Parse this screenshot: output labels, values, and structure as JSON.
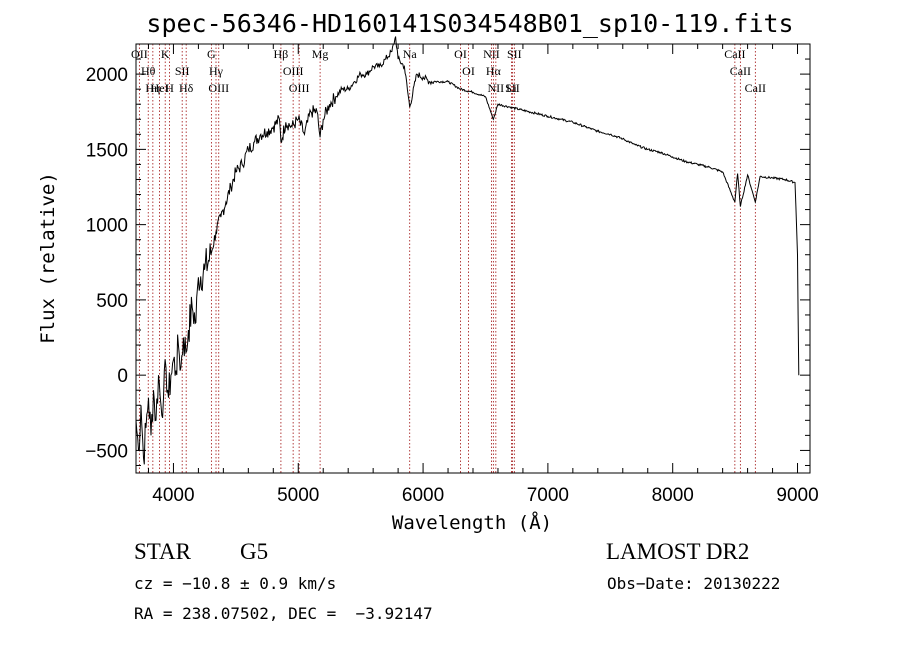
{
  "chart_data": {
    "type": "line",
    "title": "spec-56346-HD160141S034548B01_sp10-119.fits",
    "xlabel": "Wavelength (Å)",
    "ylabel": "Flux (relative)",
    "xlim": [
      3700,
      9100
    ],
    "ylim": [
      -650,
      2200
    ],
    "xticks": [
      4000,
      5000,
      6000,
      7000,
      8000,
      9000
    ],
    "yticks": [
      -500,
      0,
      500,
      1000,
      1500,
      2000
    ],
    "grid": false,
    "series": [
      {
        "x": [
          3700,
          3720,
          3740,
          3760,
          3780,
          3800,
          3820,
          3840,
          3860,
          3880,
          3900,
          3920,
          3940,
          3960,
          3980,
          4000,
          4020,
          4040,
          4060,
          4080,
          4100,
          4120,
          4150,
          4180,
          4200,
          4250,
          4300,
          4340,
          4380,
          4420,
          4460,
          4500,
          4550,
          4600,
          4650,
          4700,
          4750,
          4800,
          4850,
          4861,
          4900,
          4950,
          5000,
          5050,
          5100,
          5150,
          5175,
          5200,
          5250,
          5300,
          5350,
          5400,
          5450,
          5500,
          5550,
          5600,
          5650,
          5700,
          5750,
          5780,
          5800,
          5850,
          5893,
          5950,
          6000,
          6050,
          6100,
          6200,
          6300,
          6400,
          6500,
          6563,
          6600,
          6700,
          6800,
          6900,
          7000,
          7100,
          7200,
          7300,
          7400,
          7500,
          7600,
          7700,
          7800,
          7900,
          8000,
          8100,
          8200,
          8300,
          8400,
          8498,
          8520,
          8542,
          8600,
          8662,
          8700,
          8800,
          8900,
          8980,
          9000,
          9010
        ],
        "y": [
          -300,
          -500,
          -200,
          -550,
          -350,
          -150,
          -400,
          -100,
          -300,
          0,
          -200,
          -150,
          50,
          -150,
          0,
          100,
          30,
          200,
          50,
          250,
          150,
          300,
          450,
          350,
          650,
          700,
          800,
          950,
          1050,
          1150,
          1250,
          1350,
          1400,
          1500,
          1550,
          1600,
          1620,
          1650,
          1700,
          1550,
          1680,
          1650,
          1700,
          1600,
          1750,
          1750,
          1580,
          1700,
          1800,
          1850,
          1900,
          1900,
          1950,
          2000,
          2000,
          2050,
          2050,
          2100,
          2150,
          2250,
          2100,
          2050,
          1780,
          2000,
          1980,
          1950,
          1950,
          1950,
          1900,
          1880,
          1850,
          1700,
          1800,
          1780,
          1760,
          1740,
          1720,
          1700,
          1680,
          1650,
          1620,
          1600,
          1570,
          1530,
          1500,
          1480,
          1450,
          1420,
          1400,
          1380,
          1350,
          1150,
          1340,
          1120,
          1330,
          1150,
          1320,
          1310,
          1300,
          1280,
          800,
          0
        ]
      }
    ],
    "line_markers": [
      {
        "label": "Hθ",
        "x": 3798
      },
      {
        "label": "OII",
        "x": 3727
      },
      {
        "label": "HeI",
        "x": 3889
      },
      {
        "label": "Hη",
        "x": 3835
      },
      {
        "label": "K",
        "x": 3934
      },
      {
        "label": "H",
        "x": 3969
      },
      {
        "label": "SII",
        "x": 4070
      },
      {
        "label": "Hδ",
        "x": 4102
      },
      {
        "label": "OIII",
        "x": 4363
      },
      {
        "label": "Hγ",
        "x": 4341
      },
      {
        "label": "G",
        "x": 4304
      },
      {
        "label": "Hβ",
        "x": 4861
      },
      {
        "label": "OIII",
        "x": 4959
      },
      {
        "label": "OIII",
        "x": 5007
      },
      {
        "label": "Mg",
        "x": 5175
      },
      {
        "label": "Na",
        "x": 5893
      },
      {
        "label": "OI",
        "x": 6300
      },
      {
        "label": "OI",
        "x": 6364
      },
      {
        "label": "Hα",
        "x": 6563
      },
      {
        "label": "NII",
        "x": 6548
      },
      {
        "label": "NII",
        "x": 6583
      },
      {
        "label": "Li",
        "x": 6708
      },
      {
        "label": "SII",
        "x": 6716
      },
      {
        "label": "SII",
        "x": 6731
      },
      {
        "label": "CaII",
        "x": 8498
      },
      {
        "label": "CaII",
        "x": 8542
      },
      {
        "label": "CaII",
        "x": 8662
      }
    ],
    "annotations": {
      "object_class": "STAR",
      "subclass": "G5",
      "survey": "LAMOST DR2",
      "redshift": "cz = −10.8 ± 0.9 km/s",
      "obs_date": "Obs−Date: 20130222",
      "coords": "RA = 238.07502, DEC =  −3.92147"
    }
  }
}
